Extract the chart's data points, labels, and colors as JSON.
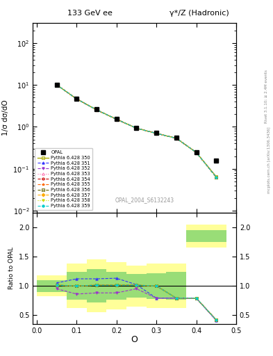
{
  "title_left": "133 GeV ee",
  "title_right": "γ*/Z (Hadronic)",
  "right_label_top": "Rivet 3.1.10; ≥ 2.4M events",
  "right_label_bot": "mcplots.cern.ch [arXiv:1306.3436]",
  "watermark": "OPAL_2004_S6132243",
  "xlabel": "O",
  "ylabel_main": "1/σ dσ/dO",
  "ylabel_ratio": "Ratio to OPAL",
  "background_color": "#ffffff",
  "opal_x": [
    0.05,
    0.1,
    0.15,
    0.2,
    0.25,
    0.3,
    0.35,
    0.4,
    0.45
  ],
  "opal_y": [
    10.2,
    4.7,
    2.6,
    1.55,
    0.95,
    0.72,
    0.55,
    0.25,
    0.155
  ],
  "mc_x": [
    0.05,
    0.1,
    0.15,
    0.2,
    0.25,
    0.3,
    0.35,
    0.4,
    0.45
  ],
  "mc_y_350": [
    10.1,
    4.65,
    2.55,
    1.52,
    0.93,
    0.7,
    0.535,
    0.245,
    0.065
  ],
  "mc_y_351": [
    10.1,
    4.65,
    2.55,
    1.52,
    0.93,
    0.7,
    0.535,
    0.245,
    0.063
  ],
  "mc_y_352": [
    10.1,
    4.65,
    2.55,
    1.52,
    0.93,
    0.7,
    0.535,
    0.245,
    0.063
  ],
  "mc_y_353": [
    10.1,
    4.65,
    2.55,
    1.52,
    0.93,
    0.7,
    0.535,
    0.245,
    0.063
  ],
  "mc_y_354": [
    10.1,
    4.65,
    2.55,
    1.52,
    0.93,
    0.7,
    0.535,
    0.245,
    0.063
  ],
  "mc_y_355": [
    10.1,
    4.65,
    2.55,
    1.52,
    0.93,
    0.7,
    0.535,
    0.245,
    0.063
  ],
  "mc_y_356": [
    10.1,
    4.65,
    2.55,
    1.52,
    0.93,
    0.7,
    0.535,
    0.245,
    0.063
  ],
  "mc_y_357": [
    10.1,
    4.65,
    2.55,
    1.52,
    0.93,
    0.7,
    0.535,
    0.245,
    0.063
  ],
  "mc_y_358": [
    10.1,
    4.65,
    2.55,
    1.52,
    0.93,
    0.7,
    0.535,
    0.245,
    0.063
  ],
  "mc_y_359": [
    10.1,
    4.65,
    2.55,
    1.52,
    0.93,
    0.7,
    0.535,
    0.245,
    0.063
  ],
  "ratio_x": [
    0.05,
    0.1,
    0.15,
    0.2,
    0.25,
    0.3,
    0.35,
    0.4,
    0.45
  ],
  "ratio_350": [
    1.01,
    1.0,
    1.01,
    1.01,
    1.01,
    1.0,
    0.79,
    0.79,
    0.42
  ],
  "ratio_351": [
    1.05,
    1.12,
    1.12,
    1.13,
    1.02,
    0.79,
    0.79,
    0.79,
    0.41
  ],
  "ratio_352": [
    0.95,
    0.86,
    0.88,
    0.88,
    0.95,
    0.79,
    0.79,
    0.79,
    0.41
  ],
  "ratio_353": [
    1.01,
    1.0,
    1.01,
    1.01,
    1.01,
    1.0,
    0.79,
    0.79,
    0.42
  ],
  "ratio_354": [
    1.01,
    1.0,
    1.01,
    1.01,
    1.01,
    1.0,
    0.79,
    0.79,
    0.42
  ],
  "ratio_355": [
    1.01,
    1.0,
    1.01,
    1.01,
    1.01,
    1.0,
    0.79,
    0.79,
    0.42
  ],
  "ratio_356": [
    1.01,
    1.0,
    1.01,
    1.01,
    1.01,
    1.0,
    0.79,
    0.79,
    0.42
  ],
  "ratio_357": [
    1.01,
    1.0,
    1.01,
    1.01,
    1.01,
    1.0,
    0.79,
    0.79,
    0.42
  ],
  "ratio_358": [
    1.01,
    1.0,
    1.01,
    1.01,
    1.01,
    1.0,
    0.79,
    0.79,
    0.42
  ],
  "ratio_359": [
    1.01,
    1.0,
    1.01,
    1.01,
    1.01,
    1.0,
    0.79,
    0.79,
    0.42
  ],
  "band_x_edges": [
    0.0,
    0.075,
    0.125,
    0.175,
    0.225,
    0.275,
    0.325,
    0.375,
    0.475
  ],
  "band_yellow_lo": [
    0.82,
    0.62,
    0.55,
    0.6,
    0.65,
    0.62,
    0.62,
    1.65,
    1.65
  ],
  "band_yellow_hi": [
    1.18,
    1.38,
    1.45,
    1.4,
    1.35,
    1.38,
    1.38,
    2.05,
    2.05
  ],
  "band_green_lo": [
    0.9,
    0.76,
    0.72,
    0.76,
    0.8,
    0.78,
    0.76,
    1.75,
    1.75
  ],
  "band_green_hi": [
    1.1,
    1.24,
    1.28,
    1.24,
    1.2,
    1.22,
    1.24,
    1.95,
    1.95
  ],
  "mc_configs": [
    {
      "label": "Pythia 6.428 350",
      "color": "#aaaa00",
      "marker": "s",
      "ls": "-",
      "lw": 1.0,
      "mfc": "none"
    },
    {
      "label": "Pythia 6.428 351",
      "color": "#3333ff",
      "marker": "^",
      "ls": "--",
      "lw": 0.8,
      "mfc": "#3333ff"
    },
    {
      "label": "Pythia 6.428 352",
      "color": "#9933cc",
      "marker": "v",
      "ls": "--",
      "lw": 0.8,
      "mfc": "#9933cc"
    },
    {
      "label": "Pythia 6.428 353",
      "color": "#ff66aa",
      "marker": "^",
      "ls": ":",
      "lw": 0.8,
      "mfc": "none"
    },
    {
      "label": "Pythia 6.428 354",
      "color": "#cc0000",
      "marker": "o",
      "ls": "--",
      "lw": 0.8,
      "mfc": "none"
    },
    {
      "label": "Pythia 6.428 355",
      "color": "#ff6600",
      "marker": "*",
      "ls": "--",
      "lw": 0.8,
      "mfc": "#ff6600"
    },
    {
      "label": "Pythia 6.428 356",
      "color": "#666600",
      "marker": "s",
      "ls": "--",
      "lw": 0.8,
      "mfc": "none"
    },
    {
      "label": "Pythia 6.428 357",
      "color": "#ffaa00",
      "marker": "D",
      "ls": "--",
      "lw": 0.8,
      "mfc": "#ffaa00"
    },
    {
      "label": "Pythia 6.428 358",
      "color": "#ccdd00",
      "marker": "v",
      "ls": ":",
      "lw": 0.8,
      "mfc": "#ccdd00"
    },
    {
      "label": "Pythia 6.428 359",
      "color": "#00cccc",
      "marker": "o",
      "ls": "--",
      "lw": 0.8,
      "mfc": "#00cccc"
    }
  ],
  "xlim": [
    -0.01,
    0.5
  ],
  "ylim_main_lo": 0.009,
  "ylim_main_hi": 300,
  "ylim_ratio_lo": 0.35,
  "ylim_ratio_hi": 2.25
}
